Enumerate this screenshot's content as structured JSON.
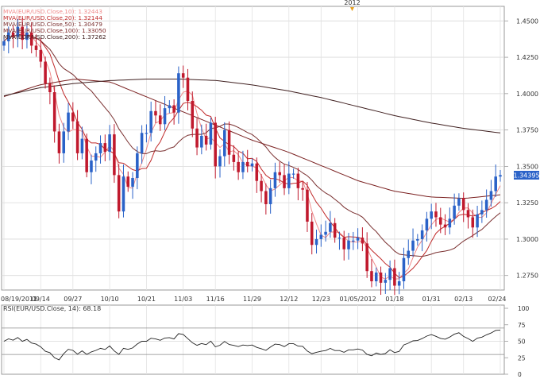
{
  "chart_data": [
    {
      "type": "candlestick",
      "year_marker": "2012",
      "legend": [
        {
          "label": "MVA(EUR/USD.Close,10): 1.32443",
          "color": "#f08a8a"
        },
        {
          "label": "MVA(EUR/USD.Close,20): 1.32144",
          "color": "#c02a2a"
        },
        {
          "label": "MVA(EUR/USD.Close,50): 1.30479",
          "color": "#7a3030"
        },
        {
          "label": "MVA(EUR/USD.Close,100): 1.33050",
          "color": "#7a2020"
        },
        {
          "label": "MVA(EUR/USD.Close,200): 1.37262",
          "color": "#402020"
        }
      ],
      "x_tick_labels": [
        "08/19/2011",
        "09/14",
        "09/27",
        "10/10",
        "10/21",
        "11/03",
        "11/16",
        "11/29",
        "12/12",
        "12/23",
        "01/05/2012",
        "01/18",
        "01/31",
        "02/13",
        "02/24"
      ],
      "y_tick_labels": [
        "1.4500",
        "1.4250",
        "1.4000",
        "1.3750",
        "1.3500",
        "1.3250",
        "1.3000",
        "1.2750"
      ],
      "ylim": [
        1.265,
        1.46
      ],
      "last_price_label": "1.34395",
      "last_price": 1.34395,
      "colors": {
        "up": "#2a62c8",
        "down": "#c0192d"
      },
      "closes": [
        1.436,
        1.442,
        1.439,
        1.446,
        1.437,
        1.442,
        1.433,
        1.43,
        1.422,
        1.407,
        1.401,
        1.374,
        1.359,
        1.374,
        1.387,
        1.381,
        1.359,
        1.369,
        1.346,
        1.354,
        1.359,
        1.366,
        1.36,
        1.372,
        1.344,
        1.319,
        1.343,
        1.336,
        1.342,
        1.359,
        1.373,
        1.373,
        1.388,
        1.385,
        1.379,
        1.39,
        1.392,
        1.387,
        1.414,
        1.411,
        1.395,
        1.376,
        1.363,
        1.371,
        1.365,
        1.38,
        1.35,
        1.357,
        1.375,
        1.358,
        1.353,
        1.346,
        1.353,
        1.35,
        1.352,
        1.34,
        1.333,
        1.324,
        1.335,
        1.346,
        1.344,
        1.335,
        1.345,
        1.345,
        1.335,
        1.334,
        1.312,
        1.296,
        1.3,
        1.303,
        1.305,
        1.311,
        1.301,
        1.301,
        1.293,
        1.299,
        1.299,
        1.301,
        1.297,
        1.278,
        1.271,
        1.277,
        1.27,
        1.272,
        1.28,
        1.268,
        1.271,
        1.287,
        1.292,
        1.299,
        1.3,
        1.306,
        1.314,
        1.319,
        1.315,
        1.31,
        1.308,
        1.314,
        1.323,
        1.328,
        1.32,
        1.315,
        1.308,
        1.317,
        1.32,
        1.327,
        1.333,
        1.343,
        1.344
      ],
      "secondary_panel": {
        "type": "line",
        "title": "RSI(EUR/USD.Close, 14): 68.18",
        "y_tick_labels": [
          "100",
          "75",
          "50",
          "25",
          "0"
        ],
        "ylim": [
          0,
          100
        ],
        "reference_lines": [
          70,
          30
        ]
      }
    }
  ]
}
